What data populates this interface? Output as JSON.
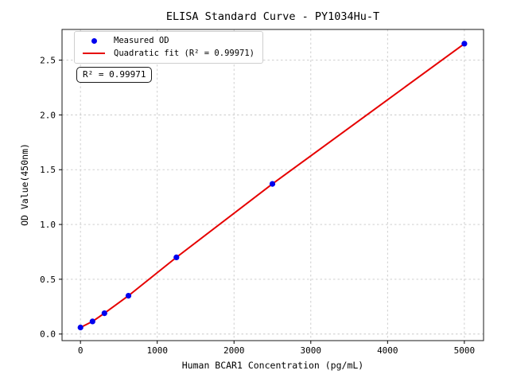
{
  "chart_data": {
    "type": "scatter",
    "title": "ELISA Standard Curve - PY1034Hu-T",
    "xlabel": "Human BCAR1 Concentration (pg/mL)",
    "ylabel": "OD Value(450nm)",
    "annotation": "R² = 0.99971",
    "r_squared": 0.99971,
    "grid": true,
    "legend_position": "upper left",
    "xlim": [
      -240,
      5250
    ],
    "ylim": [
      -0.06,
      2.78
    ],
    "x_ticks": [
      0,
      1000,
      2000,
      3000,
      4000,
      5000
    ],
    "x_tick_labels": [
      "0",
      "1000",
      "2000",
      "3000",
      "4000",
      "5000"
    ],
    "y_ticks": [
      0.0,
      0.5,
      1.0,
      1.5,
      2.0,
      2.5
    ],
    "y_tick_labels": [
      "0.0",
      "0.5",
      "1.0",
      "1.5",
      "2.0",
      "2.5"
    ],
    "series": [
      {
        "name": "Measured OD",
        "type": "scatter",
        "color": "#0000ee",
        "marker": "circle",
        "x": [
          0,
          156.25,
          312.5,
          625,
          1250,
          2500,
          5000
        ],
        "y": [
          0.06,
          0.115,
          0.19,
          0.35,
          0.7,
          1.37,
          2.65
        ]
      },
      {
        "name": "Quadratic fit (R² = 0.99971)",
        "type": "line",
        "color": "#e60000",
        "fit": "quadratic",
        "x": [
          0,
          156.25,
          312.5,
          625,
          1250,
          2500,
          5000
        ],
        "y": [
          0.06,
          0.115,
          0.19,
          0.35,
          0.7,
          1.37,
          2.65
        ]
      }
    ],
    "legend_entries": [
      {
        "label": "Measured OD",
        "marker": "dot",
        "color": "#0000ee"
      },
      {
        "label": "Quadratic fit (R² = 0.99971)",
        "marker": "line",
        "color": "#e60000"
      }
    ]
  }
}
